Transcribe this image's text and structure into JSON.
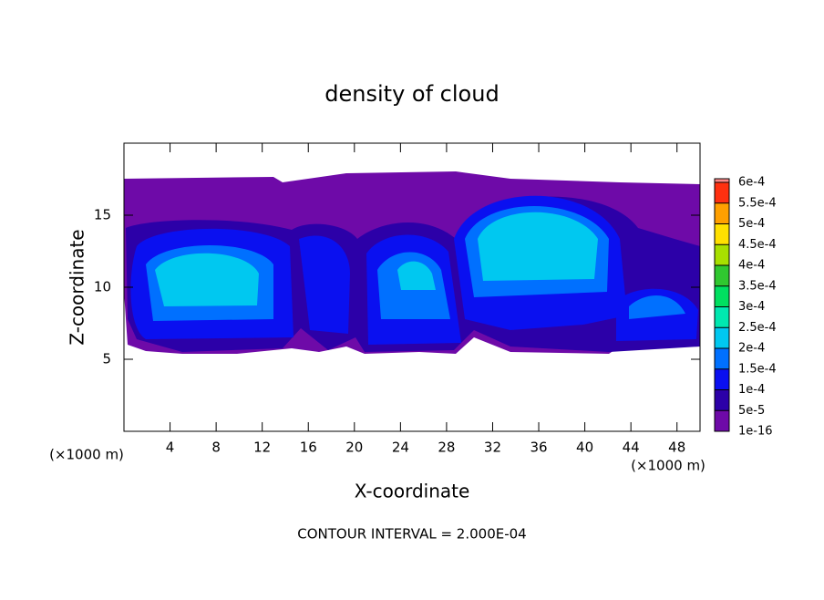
{
  "chart_data": {
    "type": "contour",
    "title": "density of cloud",
    "x_label": "X-coordinate",
    "y_label": "Z-coordinate",
    "x_unit": "(×1000 m)",
    "footer": "CONTOUR INTERVAL = 2.000E-04",
    "xlim": [
      0,
      50
    ],
    "xticks": [
      4,
      8,
      12,
      16,
      20,
      24,
      28,
      32,
      36,
      40,
      44,
      48
    ],
    "ylim": [
      0,
      20
    ],
    "yticks": [
      5,
      10,
      15
    ],
    "colorbar": {
      "levels": [
        {
          "value": 1e-16,
          "label": "1e-16"
        },
        {
          "value": 5e-05,
          "label": "5e-5"
        },
        {
          "value": 0.0001,
          "label": "1e-4"
        },
        {
          "value": 0.00015,
          "label": "1.5e-4"
        },
        {
          "value": 0.0002,
          "label": "2e-4"
        },
        {
          "value": 0.00025,
          "label": "2.5e-4"
        },
        {
          "value": 0.0003,
          "label": "3e-4"
        },
        {
          "value": 0.00035,
          "label": "3.5e-4"
        },
        {
          "value": 0.0004,
          "label": "4e-4"
        },
        {
          "value": 0.00045,
          "label": "4.5e-4"
        },
        {
          "value": 0.0005,
          "label": "5e-4"
        },
        {
          "value": 0.00055,
          "label": "5.5e-4"
        },
        {
          "value": 0.0006,
          "label": "6e-4"
        }
      ],
      "colors": [
        "#6e0aa8",
        "#2c00a8",
        "#0a10f0",
        "#0070ff",
        "#00c8f0",
        "#00e8b0",
        "#00e060",
        "#30c830",
        "#a8e000",
        "#ffe000",
        "#ffa000",
        "#ff3010",
        "#ff8888"
      ]
    }
  }
}
